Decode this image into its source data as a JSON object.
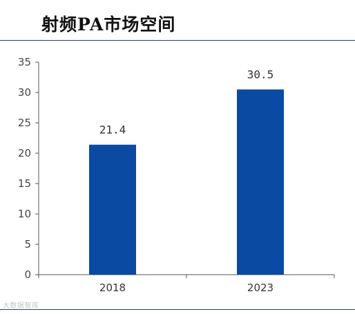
{
  "title": "射频PA市场空间",
  "watermark": "大数据智库",
  "colors": {
    "bar": "#0b4aa2",
    "axis": "#555555",
    "rule": "#1f3f87"
  },
  "chart_data": {
    "type": "bar",
    "categories": [
      "2018",
      "2023"
    ],
    "values": [
      21.4,
      30.5
    ],
    "value_labels": [
      "21.4",
      "30.5"
    ],
    "ylim": [
      0,
      35
    ],
    "yticks": [
      0,
      5,
      10,
      15,
      20,
      25,
      30,
      35
    ],
    "grid": false,
    "legend": false,
    "title": "",
    "xlabel": "",
    "ylabel": ""
  }
}
